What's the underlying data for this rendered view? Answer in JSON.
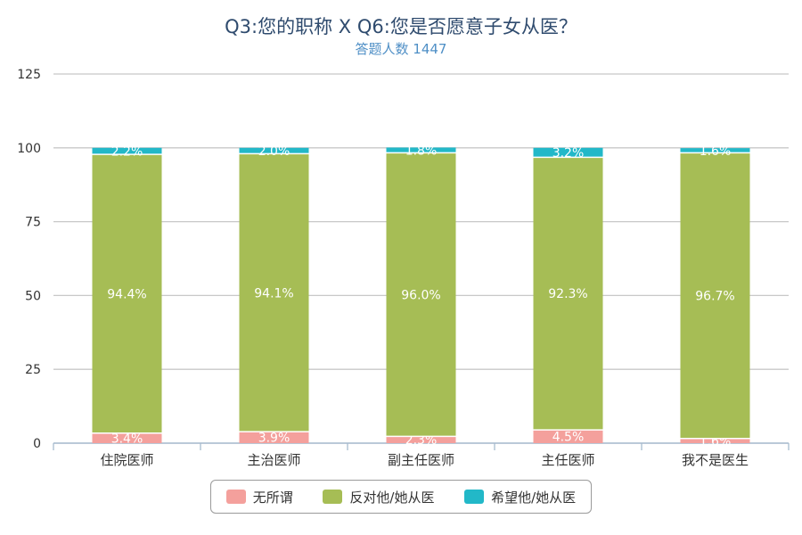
{
  "chart_data": {
    "type": "bar",
    "stacked": true,
    "title": "Q3:您的职称 X Q6:您是否愿意子女从医？",
    "subtitle": "答题人数 1447",
    "categories": [
      "住院医师",
      "主治医师",
      "副主任医师",
      "主任医师",
      "我不是医生"
    ],
    "series": [
      {
        "name": "无所谓",
        "color": "#f4a09c",
        "values": [
          3.4,
          3.9,
          2.3,
          4.5,
          1.6
        ],
        "labels": [
          "3.4%",
          "3.9%",
          "2.3%",
          "4.5%",
          "1.6%"
        ]
      },
      {
        "name": "反对他/她从医",
        "color": "#a6bd55",
        "values": [
          94.4,
          94.1,
          96.0,
          92.3,
          96.7
        ],
        "labels": [
          "94.4%",
          "94.1%",
          "96.0%",
          "92.3%",
          "96.7%"
        ]
      },
      {
        "name": "希望他/她从医",
        "color": "#22b8c8",
        "values": [
          2.2,
          2.0,
          1.8,
          3.2,
          1.6
        ],
        "labels": [
          "2.2%",
          "2.0%",
          "1.8%",
          "3.2%",
          "1.6%"
        ]
      }
    ],
    "ylim": [
      0,
      125
    ],
    "yticks": [
      "0",
      "25",
      "50",
      "75",
      "100",
      "125"
    ],
    "grid": true,
    "legend": "bottom"
  }
}
